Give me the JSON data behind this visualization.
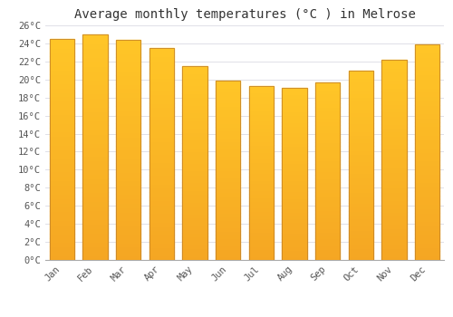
{
  "title": "Average monthly temperatures (°C ) in Melrose",
  "months": [
    "Jan",
    "Feb",
    "Mar",
    "Apr",
    "May",
    "Jun",
    "Jul",
    "Aug",
    "Sep",
    "Oct",
    "Nov",
    "Dec"
  ],
  "values": [
    24.5,
    25.0,
    24.4,
    23.5,
    21.5,
    19.9,
    19.3,
    19.1,
    19.7,
    21.0,
    22.2,
    23.9
  ],
  "bar_color_top": "#FFC627",
  "bar_color_bottom": "#F5A623",
  "bar_edge_color": "#C8862A",
  "ylim": [
    0,
    26
  ],
  "yticks": [
    0,
    2,
    4,
    6,
    8,
    10,
    12,
    14,
    16,
    18,
    20,
    22,
    24,
    26
  ],
  "ytick_labels": [
    "0°C",
    "2°C",
    "4°C",
    "6°C",
    "8°C",
    "10°C",
    "12°C",
    "14°C",
    "16°C",
    "18°C",
    "20°C",
    "22°C",
    "24°C",
    "26°C"
  ],
  "background_color": "#ffffff",
  "grid_color": "#e0e0e8",
  "title_fontsize": 10,
  "tick_fontsize": 7.5,
  "font_family": "monospace",
  "bar_width": 0.75
}
